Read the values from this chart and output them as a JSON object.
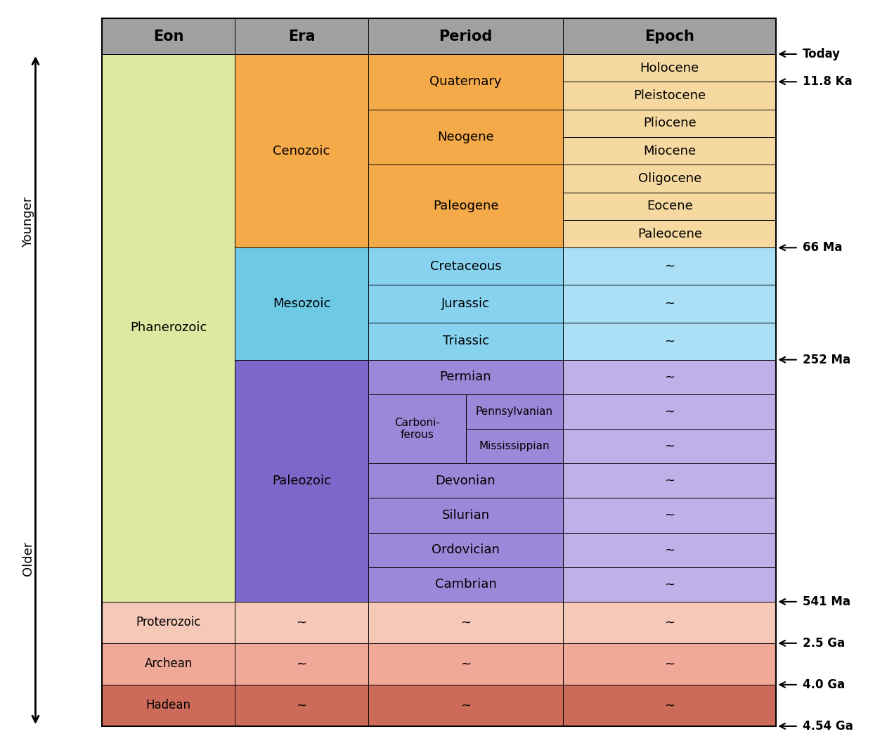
{
  "columns": [
    "Eon",
    "Era",
    "Period",
    "Epoch"
  ],
  "header_color": "#a0a0a0",
  "cenozoic_period_color": "#f5aa4a",
  "cenozoic_epoch_color": "#f5d9a0",
  "mesozoic_era_color": "#6ecae4",
  "mesozoic_period_color": "#87d3ef",
  "mesozoic_epoch_color": "#aadff5",
  "paleozoic_era_color": "#7b68c8",
  "paleozoic_period_color": "#9b88d8",
  "paleozoic_epoch_color": "#c0b0e8",
  "phanerozoic_color": "#dde8a0",
  "proterozoic_color": "#f5c8b8",
  "archean_color": "#f0a898",
  "hadean_color": "#cd6b5a",
  "background_color": "#ffffff",
  "younger_label": "Younger",
  "older_label": "Older",
  "time_markers": [
    {
      "label": "Today",
      "row_boundary": 0
    },
    {
      "label": "11.8 Ka",
      "row_boundary": 1
    },
    {
      "label": "66 Ma",
      "row_boundary": 7
    },
    {
      "label": "252 Ma",
      "row_boundary": 10
    },
    {
      "label": "541 Ma",
      "row_boundary": 19
    },
    {
      "label": "2.5 Ga",
      "row_boundary": 20
    },
    {
      "label": "4.0 Ga",
      "row_boundary": 21
    },
    {
      "label": "4.54 Ga",
      "row_boundary": 22
    }
  ]
}
